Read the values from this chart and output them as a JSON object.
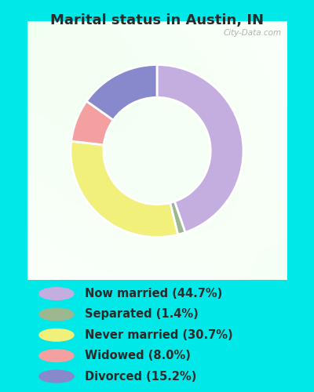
{
  "title": "Marital status in Austin, IN",
  "categories": [
    "Now married",
    "Separated",
    "Never married",
    "Widowed",
    "Divorced"
  ],
  "values": [
    44.7,
    1.4,
    30.7,
    8.0,
    15.2
  ],
  "colors": [
    "#c4aee0",
    "#9db890",
    "#f0f07a",
    "#f4a0a0",
    "#8888cc"
  ],
  "legend_labels": [
    "Now married (44.7%)",
    "Separated (1.4%)",
    "Never married (30.7%)",
    "Widowed (8.0%)",
    "Divorced (15.2%)"
  ],
  "bg_cyan": "#00e8e8",
  "title_fontsize": 13,
  "legend_fontsize": 10.5,
  "watermark": "City-Data.com"
}
